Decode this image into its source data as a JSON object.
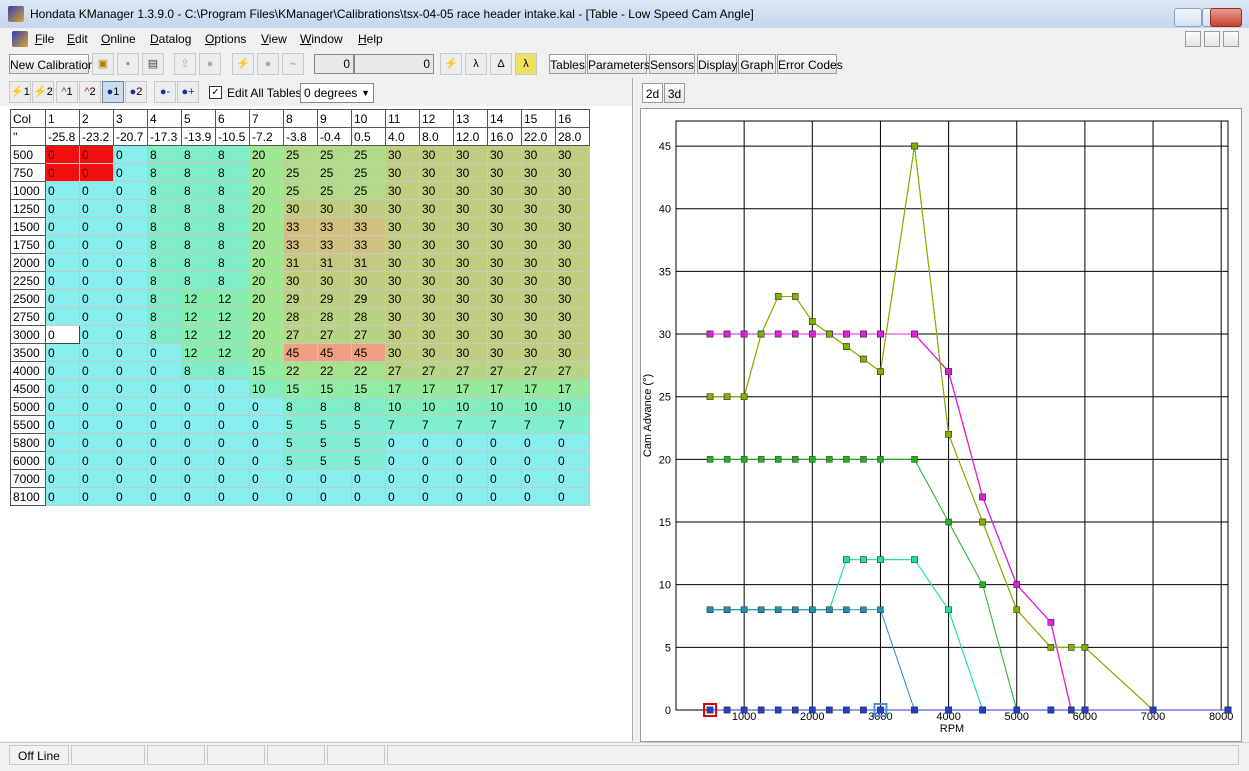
{
  "title_bar": {
    "title": "Hondata KManager 1.3.9.0 - C:\\Program Files\\KManager\\Calibrations\\tsx-04-05 race header intake.kal - [Table - Low Speed Cam Angle]"
  },
  "menu": [
    "File",
    "Edit",
    "Online",
    "Datalog",
    "Options",
    "View",
    "Window",
    "Help"
  ],
  "toolbar": {
    "new_calibration": "New Calibration",
    "field_1": "0",
    "field_2": "0",
    "buttons": [
      "Tables",
      "Parameters",
      "Sensors",
      "Display",
      "Graph",
      "Error Codes"
    ]
  },
  "table_toolbar": {
    "table_buttons": [
      "1",
      "2",
      "1",
      "2",
      "1",
      "2"
    ],
    "edit_all_tables": "Edit All Tables",
    "dropdown": "0 degrees"
  },
  "table": {
    "corner": "Col",
    "col_numbers": [
      1,
      2,
      3,
      4,
      5,
      6,
      7,
      8,
      9,
      10,
      11,
      12,
      13,
      14,
      15,
      16
    ],
    "angle_label": "''",
    "angles": [
      "-25.8",
      "-23.2",
      "-20.7",
      "-17.3",
      "-13.9",
      "-10.5",
      "-7.2",
      "-3.8",
      "-0.4",
      "0.5",
      "4.0",
      "8.0",
      "12.0",
      "16.0",
      "22.0",
      "28.0"
    ],
    "rows": [
      {
        "rpm": 500,
        "values": [
          0,
          0,
          0,
          8,
          8,
          8,
          20,
          25,
          25,
          25,
          30,
          30,
          30,
          30,
          30,
          30
        ]
      },
      {
        "rpm": 750,
        "values": [
          0,
          0,
          0,
          8,
          8,
          8,
          20,
          25,
          25,
          25,
          30,
          30,
          30,
          30,
          30,
          30
        ]
      },
      {
        "rpm": 1000,
        "values": [
          0,
          0,
          0,
          8,
          8,
          8,
          20,
          25,
          25,
          25,
          30,
          30,
          30,
          30,
          30,
          30
        ]
      },
      {
        "rpm": 1250,
        "values": [
          0,
          0,
          0,
          8,
          8,
          8,
          20,
          30,
          30,
          30,
          30,
          30,
          30,
          30,
          30,
          30
        ]
      },
      {
        "rpm": 1500,
        "values": [
          0,
          0,
          0,
          8,
          8,
          8,
          20,
          33,
          33,
          33,
          30,
          30,
          30,
          30,
          30,
          30
        ]
      },
      {
        "rpm": 1750,
        "values": [
          0,
          0,
          0,
          8,
          8,
          8,
          20,
          33,
          33,
          33,
          30,
          30,
          30,
          30,
          30,
          30
        ]
      },
      {
        "rpm": 2000,
        "values": [
          0,
          0,
          0,
          8,
          8,
          8,
          20,
          31,
          31,
          31,
          30,
          30,
          30,
          30,
          30,
          30
        ]
      },
      {
        "rpm": 2250,
        "values": [
          0,
          0,
          0,
          8,
          8,
          8,
          20,
          30,
          30,
          30,
          30,
          30,
          30,
          30,
          30,
          30
        ]
      },
      {
        "rpm": 2500,
        "values": [
          0,
          0,
          0,
          8,
          12,
          12,
          20,
          29,
          29,
          29,
          30,
          30,
          30,
          30,
          30,
          30
        ]
      },
      {
        "rpm": 2750,
        "values": [
          0,
          0,
          0,
          8,
          12,
          12,
          20,
          28,
          28,
          28,
          30,
          30,
          30,
          30,
          30,
          30
        ]
      },
      {
        "rpm": 3000,
        "values": [
          0,
          0,
          0,
          8,
          12,
          12,
          20,
          27,
          27,
          27,
          30,
          30,
          30,
          30,
          30,
          30
        ]
      },
      {
        "rpm": 3500,
        "values": [
          0,
          0,
          0,
          0,
          12,
          12,
          20,
          45,
          45,
          45,
          30,
          30,
          30,
          30,
          30,
          30
        ]
      },
      {
        "rpm": 4000,
        "values": [
          0,
          0,
          0,
          0,
          8,
          8,
          15,
          22,
          22,
          22,
          27,
          27,
          27,
          27,
          27,
          27
        ]
      },
      {
        "rpm": 4500,
        "values": [
          0,
          0,
          0,
          0,
          0,
          0,
          10,
          15,
          15,
          15,
          17,
          17,
          17,
          17,
          17,
          17
        ]
      },
      {
        "rpm": 5000,
        "values": [
          0,
          0,
          0,
          0,
          0,
          0,
          0,
          8,
          8,
          8,
          10,
          10,
          10,
          10,
          10,
          10
        ]
      },
      {
        "rpm": 5500,
        "values": [
          0,
          0,
          0,
          0,
          0,
          0,
          0,
          5,
          5,
          5,
          7,
          7,
          7,
          7,
          7,
          7
        ]
      },
      {
        "rpm": 5800,
        "values": [
          0,
          0,
          0,
          0,
          0,
          0,
          0,
          5,
          5,
          5,
          0,
          0,
          0,
          0,
          0,
          0
        ]
      },
      {
        "rpm": 6000,
        "values": [
          0,
          0,
          0,
          0,
          0,
          0,
          0,
          5,
          5,
          5,
          0,
          0,
          0,
          0,
          0,
          0
        ]
      },
      {
        "rpm": 7000,
        "values": [
          0,
          0,
          0,
          0,
          0,
          0,
          0,
          0,
          0,
          0,
          0,
          0,
          0,
          0,
          0,
          0
        ]
      },
      {
        "rpm": 8100,
        "values": [
          0,
          0,
          0,
          0,
          0,
          0,
          0,
          0,
          0,
          0,
          0,
          0,
          0,
          0,
          0,
          0
        ]
      }
    ]
  },
  "graph": {
    "tabs": [
      "2d",
      "3d"
    ],
    "xlabel": "RPM",
    "ylabel": "Cam Advance (°)",
    "xlim": [
      0,
      8100
    ],
    "ylim": [
      0,
      47
    ],
    "xticks": [
      1000,
      2000,
      3000,
      4000,
      5000,
      6000,
      7000,
      8000
    ],
    "yticks": [
      0,
      5,
      10,
      15,
      20,
      25,
      30,
      35,
      40,
      45
    ],
    "grid": true,
    "colors": [
      "#2040d0",
      "#2040d0",
      "#2040d0",
      "#2090b0",
      "#20e0a0",
      "#20e0a0",
      "#20b020",
      "#80b000",
      "#80b000",
      "#80b000",
      "#e020e0",
      "#e020e0",
      "#e020e0",
      "#e020e0",
      "#e020e0",
      "#e020e0"
    ]
  },
  "status_bar": {
    "text": "Off Line"
  }
}
